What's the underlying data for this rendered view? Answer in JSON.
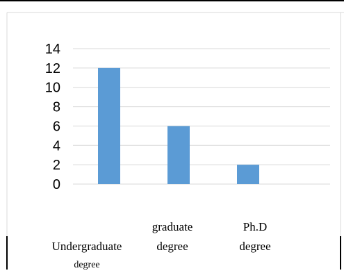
{
  "chart_data": {
    "type": "bar",
    "categories": [
      [
        "Undergraduate",
        "degree"
      ],
      [
        "graduate",
        "degree"
      ],
      [
        "Ph.D",
        "degree"
      ]
    ],
    "values": [
      12,
      6,
      2
    ],
    "ylim": [
      0,
      14
    ],
    "yticks": [
      0,
      2,
      4,
      6,
      8,
      10,
      12,
      14
    ],
    "grid": true,
    "legend": "none",
    "bar_color": "#5b9bd5",
    "grid_color": "#d9d9d9",
    "title": "",
    "xlabel": "",
    "ylabel": ""
  }
}
